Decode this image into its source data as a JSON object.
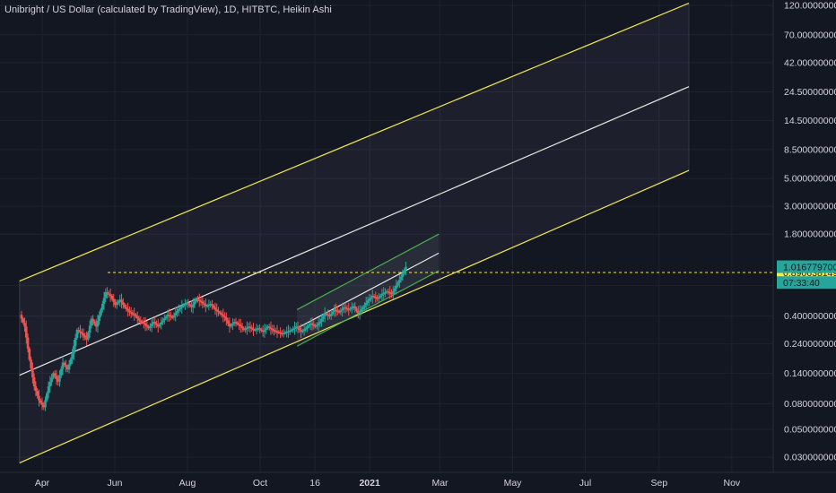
{
  "chart_data": {
    "type": "candlestick",
    "title": "Unibright / US Dollar (calculated by TradingView), 1D, HITBTC, Heikin Ashi",
    "y_scale": "log",
    "ylim": [
      0.025,
      125
    ],
    "y_ticks": [
      {
        "value": 120,
        "label": "120.000000000"
      },
      {
        "value": 70,
        "label": "70.000000000"
      },
      {
        "value": 42,
        "label": "42.000000000"
      },
      {
        "value": 24.5,
        "label": "24.500000000"
      },
      {
        "value": 14.5,
        "label": "14.500000000"
      },
      {
        "value": 8.5,
        "label": "8.500000000"
      },
      {
        "value": 5,
        "label": "5.000000000"
      },
      {
        "value": 3,
        "label": "3.000000000"
      },
      {
        "value": 1.8,
        "label": "1.800000000"
      },
      {
        "value": 0.7,
        "label": "0.700000000"
      },
      {
        "value": 0.4,
        "label": "0.400000000"
      },
      {
        "value": 0.24,
        "label": "0.240000000"
      },
      {
        "value": 0.14,
        "label": "0.140000000"
      },
      {
        "value": 0.08,
        "label": "0.080000000"
      },
      {
        "value": 0.05,
        "label": "0.050000000"
      },
      {
        "value": 0.03,
        "label": "0.030000000"
      }
    ],
    "x_ticks": [
      {
        "date": "2020-04-01",
        "label": "Apr",
        "bold": false
      },
      {
        "date": "2020-06-01",
        "label": "Jun",
        "bold": false
      },
      {
        "date": "2020-08-01",
        "label": "Aug",
        "bold": false
      },
      {
        "date": "2020-10-01",
        "label": "Oct",
        "bold": false
      },
      {
        "date": "2020-11-16",
        "label": "16",
        "bold": false
      },
      {
        "date": "2021-01-01",
        "label": "2021",
        "bold": true
      },
      {
        "date": "2021-03-01",
        "label": "Mar",
        "bold": false
      },
      {
        "date": "2021-05-01",
        "label": "May",
        "bold": false
      },
      {
        "date": "2021-07-01",
        "label": "Jul",
        "bold": false
      },
      {
        "date": "2021-09-01",
        "label": "Sep",
        "bold": false
      },
      {
        "date": "2021-11-01",
        "label": "Nov",
        "bold": false
      }
    ],
    "price_labels": [
      {
        "value": 0.89,
        "label": "0.890638149",
        "color": "#ffeb3b",
        "text_color": "#131722"
      },
      {
        "value": 0.99,
        "label": "1.016779700",
        "color": "#26a69a",
        "text_color": "#131722"
      },
      {
        "value": 0.74,
        "label": "07:33:40",
        "color": "#26a69a",
        "text_color": "#131722"
      }
    ],
    "horizontal_line": {
      "value": 0.89,
      "from": "2020-05-26",
      "color": "#ffeb3b",
      "dashed": true
    },
    "channels": [
      {
        "name": "outer-upper",
        "color": "#f2e94e",
        "from": {
          "date": "2020-03-13",
          "value": 0.76
        },
        "to": {
          "date": "2021-09-26",
          "value": 125
        }
      },
      {
        "name": "outer-mid",
        "color": "#e8e8e8",
        "from": {
          "date": "2020-03-13",
          "value": 0.135
        },
        "to": {
          "date": "2021-09-26",
          "value": 27
        }
      },
      {
        "name": "outer-lower",
        "color": "#f2e94e",
        "from": {
          "date": "2020-03-13",
          "value": 0.027
        },
        "to": {
          "date": "2021-09-26",
          "value": 5.8
        }
      },
      {
        "name": "inner-upper",
        "color": "#4caf50",
        "from": {
          "date": "2020-11-01",
          "value": 0.45
        },
        "to": {
          "date": "2021-02-28",
          "value": 1.8
        }
      },
      {
        "name": "inner-mid",
        "color": "#e8e8e8",
        "from": {
          "date": "2020-11-01",
          "value": 0.32
        },
        "to": {
          "date": "2021-02-28",
          "value": 1.27
        }
      },
      {
        "name": "inner-lower",
        "color": "#4caf50",
        "from": {
          "date": "2020-11-01",
          "value": 0.23
        },
        "to": {
          "date": "2021-02-28",
          "value": 0.92
        }
      }
    ],
    "series": [
      {
        "date": "2020-03-14",
        "value": 0.41
      },
      {
        "date": "2020-03-18",
        "value": 0.33
      },
      {
        "date": "2020-03-22",
        "value": 0.18
      },
      {
        "date": "2020-03-26",
        "value": 0.11
      },
      {
        "date": "2020-03-30",
        "value": 0.085
      },
      {
        "date": "2020-04-03",
        "value": 0.075
      },
      {
        "date": "2020-04-07",
        "value": 0.11
      },
      {
        "date": "2020-04-11",
        "value": 0.14
      },
      {
        "date": "2020-04-15",
        "value": 0.12
      },
      {
        "date": "2020-04-19",
        "value": 0.17
      },
      {
        "date": "2020-04-23",
        "value": 0.15
      },
      {
        "date": "2020-04-27",
        "value": 0.2
      },
      {
        "date": "2020-05-01",
        "value": 0.31
      },
      {
        "date": "2020-05-05",
        "value": 0.29
      },
      {
        "date": "2020-05-09",
        "value": 0.26
      },
      {
        "date": "2020-05-13",
        "value": 0.38
      },
      {
        "date": "2020-05-17",
        "value": 0.33
      },
      {
        "date": "2020-05-21",
        "value": 0.45
      },
      {
        "date": "2020-05-25",
        "value": 0.62
      },
      {
        "date": "2020-05-29",
        "value": 0.58
      },
      {
        "date": "2020-06-02",
        "value": 0.49
      },
      {
        "date": "2020-06-06",
        "value": 0.54
      },
      {
        "date": "2020-06-10",
        "value": 0.47
      },
      {
        "date": "2020-06-14",
        "value": 0.43
      },
      {
        "date": "2020-06-18",
        "value": 0.41
      },
      {
        "date": "2020-06-22",
        "value": 0.37
      },
      {
        "date": "2020-06-26",
        "value": 0.35
      },
      {
        "date": "2020-06-30",
        "value": 0.32
      },
      {
        "date": "2020-07-04",
        "value": 0.36
      },
      {
        "date": "2020-07-08",
        "value": 0.33
      },
      {
        "date": "2020-07-12",
        "value": 0.37
      },
      {
        "date": "2020-07-16",
        "value": 0.41
      },
      {
        "date": "2020-07-20",
        "value": 0.39
      },
      {
        "date": "2020-07-24",
        "value": 0.44
      },
      {
        "date": "2020-07-28",
        "value": 0.48
      },
      {
        "date": "2020-08-01",
        "value": 0.51
      },
      {
        "date": "2020-08-05",
        "value": 0.47
      },
      {
        "date": "2020-08-09",
        "value": 0.55
      },
      {
        "date": "2020-08-13",
        "value": 0.52
      },
      {
        "date": "2020-08-17",
        "value": 0.48
      },
      {
        "date": "2020-08-21",
        "value": 0.5
      },
      {
        "date": "2020-08-25",
        "value": 0.45
      },
      {
        "date": "2020-08-29",
        "value": 0.42
      },
      {
        "date": "2020-09-02",
        "value": 0.39
      },
      {
        "date": "2020-09-06",
        "value": 0.33
      },
      {
        "date": "2020-09-10",
        "value": 0.36
      },
      {
        "date": "2020-09-14",
        "value": 0.34
      },
      {
        "date": "2020-09-18",
        "value": 0.31
      },
      {
        "date": "2020-09-22",
        "value": 0.33
      },
      {
        "date": "2020-09-26",
        "value": 0.31
      },
      {
        "date": "2020-09-30",
        "value": 0.32
      },
      {
        "date": "2020-10-04",
        "value": 0.3
      },
      {
        "date": "2020-10-08",
        "value": 0.33
      },
      {
        "date": "2020-10-12",
        "value": 0.31
      },
      {
        "date": "2020-10-16",
        "value": 0.3
      },
      {
        "date": "2020-10-20",
        "value": 0.29
      },
      {
        "date": "2020-10-24",
        "value": 0.3
      },
      {
        "date": "2020-10-28",
        "value": 0.31
      },
      {
        "date": "2020-11-01",
        "value": 0.33
      },
      {
        "date": "2020-11-05",
        "value": 0.3
      },
      {
        "date": "2020-11-09",
        "value": 0.32
      },
      {
        "date": "2020-11-13",
        "value": 0.35
      },
      {
        "date": "2020-11-17",
        "value": 0.33
      },
      {
        "date": "2020-11-21",
        "value": 0.36
      },
      {
        "date": "2020-11-25",
        "value": 0.42
      },
      {
        "date": "2020-11-29",
        "value": 0.4
      },
      {
        "date": "2020-12-03",
        "value": 0.45
      },
      {
        "date": "2020-12-07",
        "value": 0.43
      },
      {
        "date": "2020-12-11",
        "value": 0.47
      },
      {
        "date": "2020-12-15",
        "value": 0.45
      },
      {
        "date": "2020-12-19",
        "value": 0.48
      },
      {
        "date": "2020-12-23",
        "value": 0.42
      },
      {
        "date": "2020-12-27",
        "value": 0.47
      },
      {
        "date": "2020-12-31",
        "value": 0.53
      },
      {
        "date": "2021-01-04",
        "value": 0.58
      },
      {
        "date": "2021-01-08",
        "value": 0.55
      },
      {
        "date": "2021-01-12",
        "value": 0.6
      },
      {
        "date": "2021-01-16",
        "value": 0.63
      },
      {
        "date": "2021-01-20",
        "value": 0.6
      },
      {
        "date": "2021-01-24",
        "value": 0.7
      },
      {
        "date": "2021-01-28",
        "value": 0.82
      },
      {
        "date": "2021-02-01",
        "value": 0.99
      }
    ]
  }
}
